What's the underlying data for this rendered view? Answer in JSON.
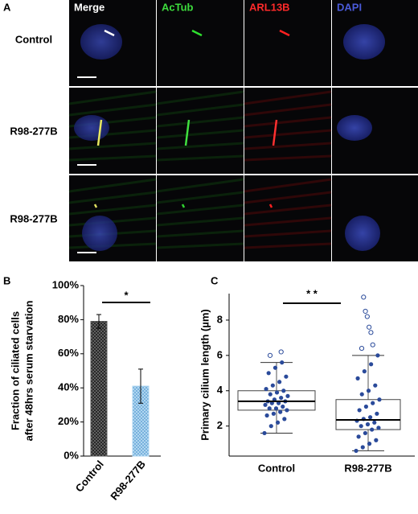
{
  "panel_a": {
    "label": "A",
    "columns": [
      "Merge",
      "AcTub",
      "ARL13B",
      "DAPI"
    ],
    "rows": [
      "Control",
      "R98-277B",
      "R98-277B"
    ]
  },
  "chart_data": [
    {
      "type": "bar",
      "panel_label": "B",
      "ylabel": [
        "Fraction of ciliated cells",
        "after 48hrs serum starvation"
      ],
      "categories": [
        "Control",
        "R98-277B"
      ],
      "values": [
        79,
        41
      ],
      "errors": [
        4,
        10
      ],
      "colors": [
        "#555555",
        "#a9d3f0"
      ],
      "ylim": [
        0,
        100
      ],
      "yticks": [
        {
          "value": 0,
          "label": "0%"
        },
        {
          "value": 20,
          "label": "20%"
        },
        {
          "value": 40,
          "label": "40%"
        },
        {
          "value": 60,
          "label": "60%"
        },
        {
          "value": 80,
          "label": "80%"
        },
        {
          "value": 100,
          "label": "100%"
        }
      ],
      "annotation": "*"
    },
    {
      "type": "box",
      "panel_label": "C",
      "ylabel": "Primary cilium length (µm)",
      "categories": [
        "Control",
        "R98-277B"
      ],
      "boxes": [
        {
          "min": 1.6,
          "q1": 2.9,
          "median": 3.4,
          "q3": 4.0,
          "max": 5.6,
          "points": [
            1.6,
            2.0,
            2.2,
            2.4,
            2.6,
            2.7,
            2.8,
            2.9,
            3.0,
            3.0,
            3.1,
            3.2,
            3.3,
            3.3,
            3.4,
            3.4,
            3.5,
            3.6,
            3.7,
            3.8,
            3.9,
            4.0,
            4.1,
            4.3,
            4.5,
            4.8,
            5.0,
            5.3,
            5.6
          ],
          "outliers": [
            6.0,
            6.2
          ]
        },
        {
          "min": 0.6,
          "q1": 1.8,
          "median": 2.35,
          "q3": 3.5,
          "max": 6.0,
          "points": [
            0.6,
            0.8,
            1.0,
            1.2,
            1.4,
            1.6,
            1.8,
            1.9,
            2.0,
            2.1,
            2.2,
            2.3,
            2.4,
            2.5,
            2.7,
            2.9,
            3.1,
            3.3,
            3.5,
            3.8,
            4.0,
            4.3,
            4.7,
            5.1,
            5.5,
            6.0
          ],
          "outliers": [
            6.4,
            6.6,
            7.3,
            7.6,
            8.2,
            8.5,
            9.3
          ]
        }
      ],
      "color": "#2a4a9a",
      "ylim": [
        0.3,
        9.5
      ],
      "yticks": [
        2,
        4,
        6,
        8
      ],
      "annotation": "* *"
    }
  ]
}
